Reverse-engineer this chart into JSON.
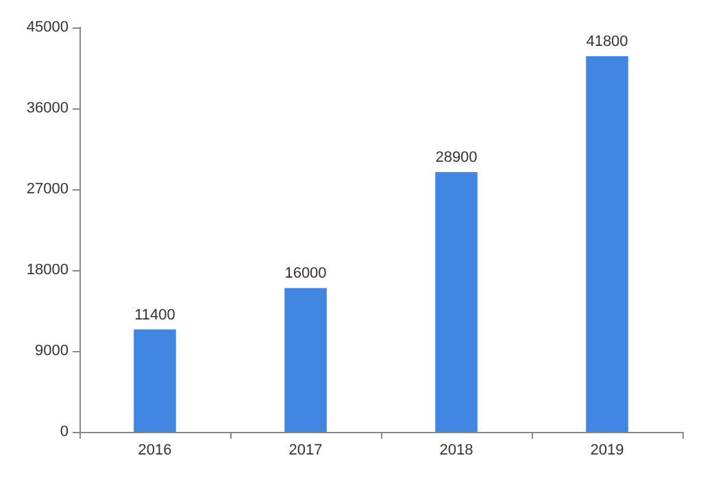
{
  "chart_data": {
    "type": "bar",
    "categories": [
      "2016",
      "2017",
      "2018",
      "2019"
    ],
    "values": [
      11400,
      16000,
      28900,
      41800
    ],
    "color": "#4286e3",
    "ylim": [
      0,
      45000
    ],
    "yticks": [
      0,
      9000,
      18000,
      27000,
      36000,
      45000
    ],
    "grid": false,
    "data_labels": true
  }
}
